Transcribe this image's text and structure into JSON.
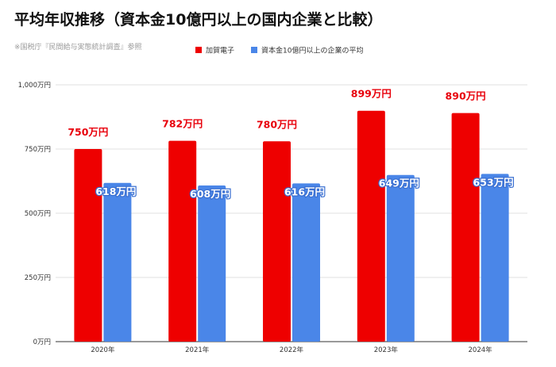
{
  "title": "平均年収推移（資本金10億円以上の国内企業と比較）",
  "source": "※国税庁『民間給与実態統計調査』参照",
  "colors": {
    "series1": "#ee0000",
    "series2": "#4a86e8",
    "grid": "#e0e0e0",
    "axis": "#333333"
  },
  "chart_data": {
    "type": "bar",
    "categories": [
      "2020年",
      "2021年",
      "2022年",
      "2023年",
      "2024年"
    ],
    "series": [
      {
        "name": "加賀電子",
        "values": [
          750,
          782,
          780,
          899,
          890
        ],
        "labels": [
          "750万円",
          "782万円",
          "780万円",
          "899万円",
          "890万円"
        ]
      },
      {
        "name": "資本金10億円以上の企業の平均",
        "values": [
          618,
          608,
          616,
          649,
          653
        ],
        "labels": [
          "618万円",
          "608万円",
          "616万円",
          "649万円",
          "653万円"
        ]
      }
    ],
    "ylim": [
      0,
      1000
    ],
    "yticks": [
      0,
      250,
      500,
      750,
      1000
    ],
    "ytick_labels": [
      "0万円",
      "250万円",
      "500万円",
      "750万円",
      "1,000万円"
    ],
    "grid": true,
    "legend": "top-center"
  }
}
